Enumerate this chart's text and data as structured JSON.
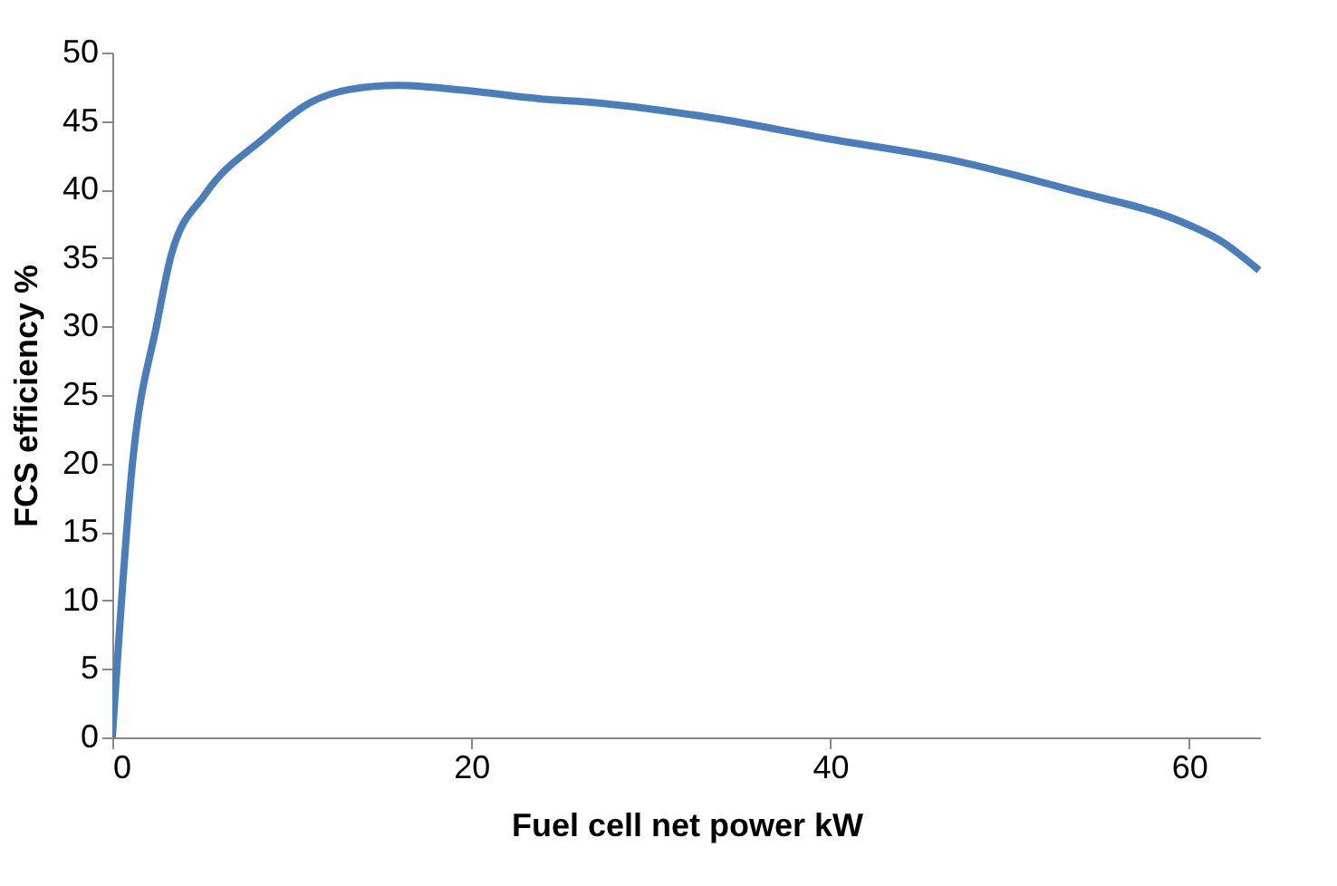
{
  "chart_data": {
    "type": "line",
    "xlabel": "Fuel cell net power kW",
    "ylabel": "FCS efficiency %",
    "x": [
      0,
      1.1,
      2.5,
      3.3,
      5.2,
      8.4,
      11.1,
      13.2,
      15.9,
      19.9,
      24,
      26.4,
      33.1,
      39.9,
      46.6,
      53.3,
      60,
      61.7,
      63.9
    ],
    "series": [
      {
        "color": "#4a7ebb",
        "values": [
          0,
          19.7,
          30.3,
          35.3,
          39.7,
          43.7,
          46.4,
          47.3,
          47.6,
          47.2,
          46.6,
          46.4,
          45.3,
          43.7,
          42.2,
          40.0,
          37.4,
          36.3,
          34.1
        ]
      }
    ],
    "xlim": [
      0,
      64
    ],
    "xticks": [
      0,
      20,
      40,
      60
    ],
    "ylim": [
      0,
      50
    ],
    "yticks": [
      0,
      5,
      10,
      15,
      20,
      25,
      30,
      35,
      40,
      45,
      50
    ],
    "grid": false,
    "legend": false,
    "marker": "none",
    "line_style": "solid"
  }
}
